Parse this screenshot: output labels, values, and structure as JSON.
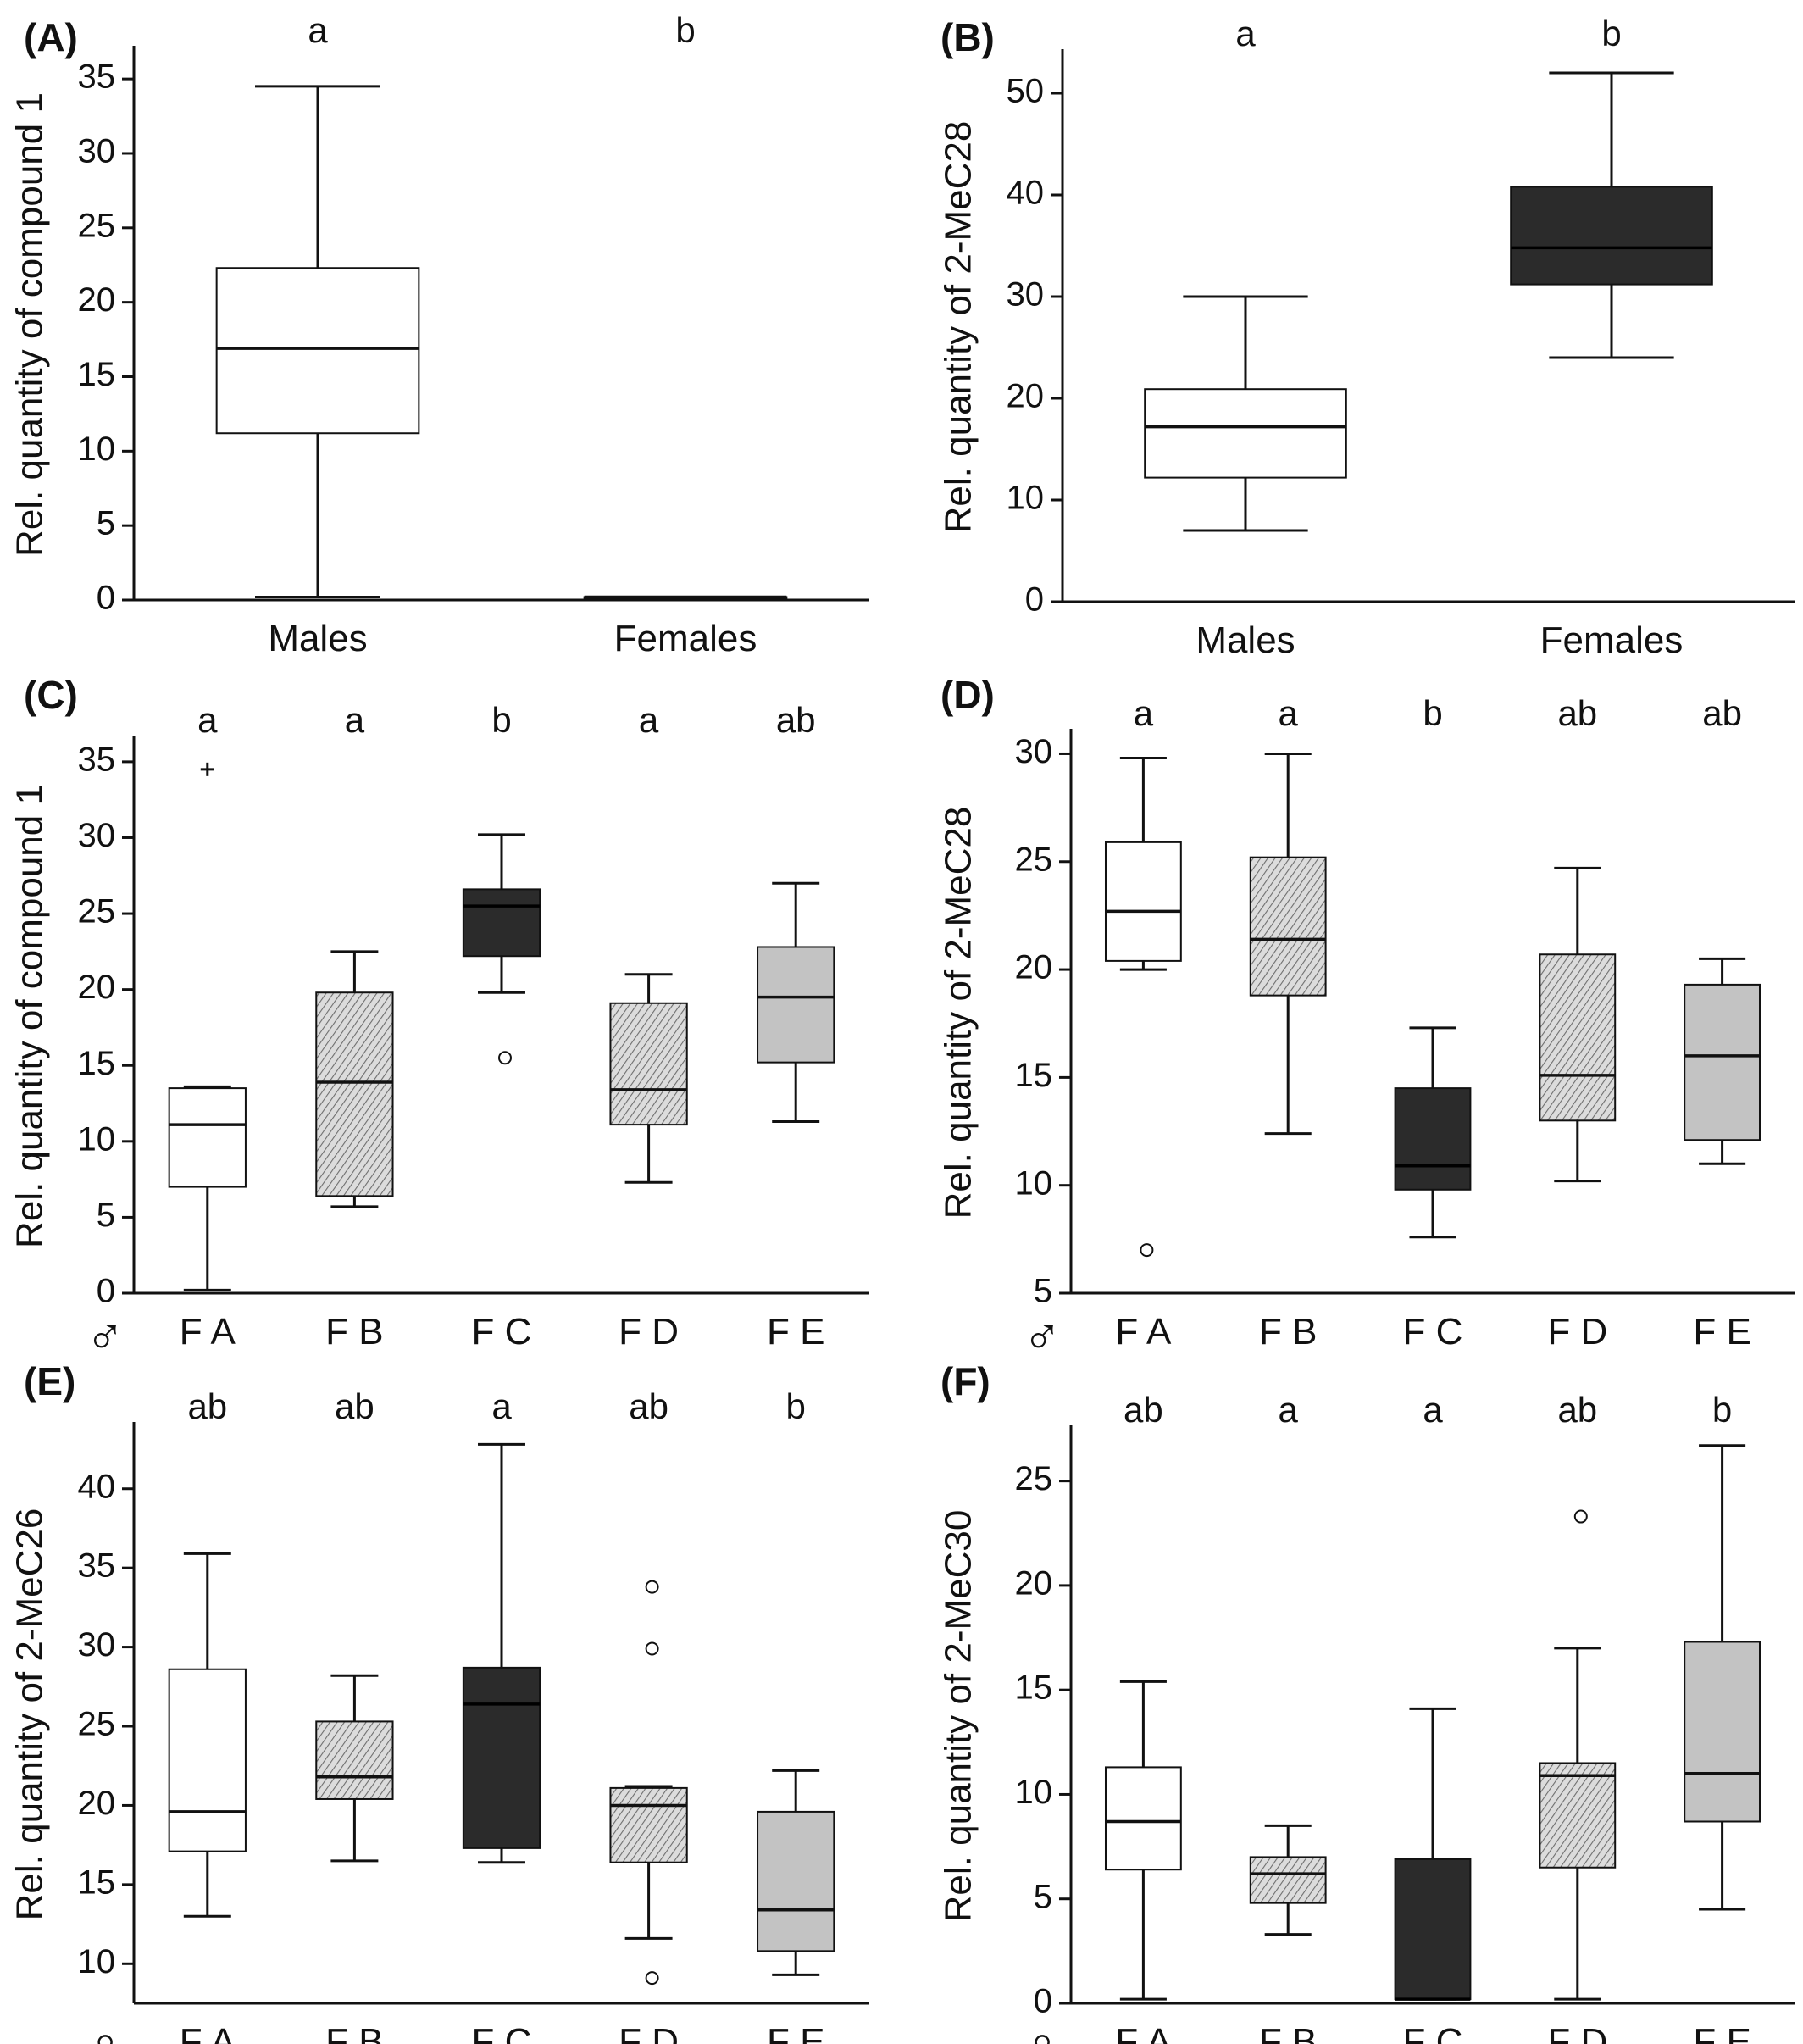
{
  "chart_data": [
    {
      "type": "boxplot",
      "panel": "(A)",
      "ylabel": "Rel. quantity of compound 1",
      "ylim": [
        0,
        37
      ],
      "yticks": [
        0,
        5,
        10,
        15,
        20,
        25,
        30,
        35
      ],
      "sex_symbol": "",
      "categories": [
        {
          "label": "Males",
          "sig": "a",
          "fill": "white",
          "whisker_low": 0.2,
          "q1": 11.2,
          "median": 16.9,
          "q3": 22.3,
          "whisker_high": 34.5,
          "outliers": [],
          "extremes": []
        },
        {
          "label": "Females",
          "sig": "b",
          "fill": "white",
          "whisker_low": 0.2,
          "q1": 0.2,
          "median": 0.2,
          "q3": 0.2,
          "whisker_high": 0.2,
          "outliers": [],
          "extremes": []
        }
      ]
    },
    {
      "type": "boxplot",
      "panel": "(B)",
      "ylabel": "Rel. quantity of 2-MeC28",
      "ylim": [
        0,
        54
      ],
      "yticks": [
        0,
        10,
        20,
        30,
        40,
        50
      ],
      "sex_symbol": "",
      "categories": [
        {
          "label": "Males",
          "sig": "a",
          "fill": "white",
          "whisker_low": 7,
          "q1": 12.2,
          "median": 17.2,
          "q3": 20.9,
          "whisker_high": 30,
          "outliers": [],
          "extremes": []
        },
        {
          "label": "Females",
          "sig": "b",
          "fill": "dark",
          "whisker_low": 24,
          "q1": 31.2,
          "median": 34.8,
          "q3": 40.8,
          "whisker_high": 52,
          "outliers": [],
          "extremes": []
        }
      ]
    },
    {
      "type": "boxplot",
      "panel": "(C)",
      "ylabel": "Rel. quantity of compound 1",
      "ylim": [
        0,
        36.5
      ],
      "yticks": [
        0,
        5,
        10,
        15,
        20,
        25,
        30,
        35
      ],
      "sex_symbol": "♂",
      "categories": [
        {
          "label": "F A",
          "sig": "a",
          "fill": "white",
          "whisker_low": 0.2,
          "q1": 7.0,
          "median": 11.1,
          "q3": 13.5,
          "whisker_high": 13.6,
          "outliers": [],
          "extremes": [
            34.5
          ]
        },
        {
          "label": "F B",
          "sig": "a",
          "fill": "hatch",
          "whisker_low": 5.7,
          "q1": 6.4,
          "median": 13.9,
          "q3": 19.8,
          "whisker_high": 22.5,
          "outliers": [],
          "extremes": []
        },
        {
          "label": "F C",
          "sig": "b",
          "fill": "dark",
          "whisker_low": 19.8,
          "q1": 22.2,
          "median": 25.5,
          "q3": 26.6,
          "whisker_high": 30.2,
          "outliers": [
            15.5
          ],
          "extremes": []
        },
        {
          "label": "F D",
          "sig": "a",
          "fill": "hatch",
          "whisker_low": 7.3,
          "q1": 11.1,
          "median": 13.4,
          "q3": 19.1,
          "whisker_high": 21.0,
          "outliers": [],
          "extremes": []
        },
        {
          "label": "F E",
          "sig": "ab",
          "fill": "gray",
          "whisker_low": 11.3,
          "q1": 15.2,
          "median": 19.5,
          "q3": 22.8,
          "whisker_high": 27.0,
          "outliers": [],
          "extremes": []
        }
      ]
    },
    {
      "type": "boxplot",
      "panel": "(D)",
      "ylabel": "Rel. quantity of 2-MeC28",
      "ylim": [
        5,
        31
      ],
      "yticks": [
        5,
        10,
        15,
        20,
        25,
        30
      ],
      "sex_symbol": "♂",
      "categories": [
        {
          "label": "F A",
          "sig": "a",
          "fill": "white",
          "whisker_low": 20.0,
          "q1": 20.4,
          "median": 22.7,
          "q3": 25.9,
          "whisker_high": 29.8,
          "outliers": [
            7.0
          ],
          "extremes": []
        },
        {
          "label": "F B",
          "sig": "a",
          "fill": "hatch",
          "whisker_low": 12.4,
          "q1": 18.8,
          "median": 21.4,
          "q3": 25.2,
          "whisker_high": 30.0,
          "outliers": [],
          "extremes": []
        },
        {
          "label": "F C",
          "sig": "b",
          "fill": "dark",
          "whisker_low": 7.6,
          "q1": 9.8,
          "median": 10.9,
          "q3": 14.5,
          "whisker_high": 17.3,
          "outliers": [],
          "extremes": []
        },
        {
          "label": "F D",
          "sig": "ab",
          "fill": "hatch",
          "whisker_low": 10.2,
          "q1": 13.0,
          "median": 15.1,
          "q3": 20.7,
          "whisker_high": 24.7,
          "outliers": [],
          "extremes": []
        },
        {
          "label": "F E",
          "sig": "ab",
          "fill": "gray",
          "whisker_low": 11.0,
          "q1": 12.1,
          "median": 16.0,
          "q3": 19.3,
          "whisker_high": 20.5,
          "outliers": [],
          "extremes": []
        }
      ]
    },
    {
      "type": "boxplot",
      "panel": "(E)",
      "ylabel": "Rel. quantity of 2-MeC26",
      "ylim": [
        7.5,
        44
      ],
      "yticks": [
        10,
        15,
        20,
        25,
        30,
        35,
        40
      ],
      "sex_symbol": "♀",
      "categories": [
        {
          "label": "F A",
          "sig": "ab",
          "fill": "white",
          "whisker_low": 13.0,
          "q1": 17.1,
          "median": 19.6,
          "q3": 28.6,
          "whisker_high": 35.9,
          "outliers": [],
          "extremes": []
        },
        {
          "label": "F B",
          "sig": "ab",
          "fill": "hatch",
          "whisker_low": 16.5,
          "q1": 20.4,
          "median": 21.8,
          "q3": 25.3,
          "whisker_high": 28.2,
          "outliers": [],
          "extremes": []
        },
        {
          "label": "F C",
          "sig": "a",
          "fill": "dark",
          "whisker_low": 16.4,
          "q1": 17.3,
          "median": 26.4,
          "q3": 28.7,
          "whisker_high": 42.8,
          "outliers": [],
          "extremes": []
        },
        {
          "label": "F D",
          "sig": "ab",
          "fill": "hatch",
          "whisker_low": 11.6,
          "q1": 16.4,
          "median": 20.0,
          "q3": 21.1,
          "whisker_high": 21.2,
          "outliers": [
            33.8,
            29.9,
            9.1
          ],
          "extremes": []
        },
        {
          "label": "F E",
          "sig": "b",
          "fill": "gray",
          "whisker_low": 9.3,
          "q1": 10.8,
          "median": 13.4,
          "q3": 19.6,
          "whisker_high": 22.2,
          "outliers": [],
          "extremes": []
        }
      ]
    },
    {
      "type": "boxplot",
      "panel": "(F)",
      "ylabel": "Rel. quantity of 2-MeC30",
      "ylim": [
        0,
        27.5
      ],
      "yticks": [
        0,
        5,
        10,
        15,
        20,
        25
      ],
      "sex_symbol": "♀",
      "categories": [
        {
          "label": "F A",
          "sig": "ab",
          "fill": "white",
          "whisker_low": 0.2,
          "q1": 6.4,
          "median": 8.7,
          "q3": 11.3,
          "whisker_high": 15.4,
          "outliers": [],
          "extremes": []
        },
        {
          "label": "F B",
          "sig": "a",
          "fill": "hatch",
          "whisker_low": 3.3,
          "q1": 4.8,
          "median": 6.2,
          "q3": 7.0,
          "whisker_high": 8.5,
          "outliers": [],
          "extremes": []
        },
        {
          "label": "F C",
          "sig": "a",
          "fill": "dark",
          "whisker_low": 0.2,
          "q1": 0.2,
          "median": 0.2,
          "q3": 6.9,
          "whisker_high": 14.1,
          "outliers": [],
          "extremes": []
        },
        {
          "label": "F D",
          "sig": "ab",
          "fill": "hatch",
          "whisker_low": 0.2,
          "q1": 6.5,
          "median": 10.9,
          "q3": 11.5,
          "whisker_high": 17.0,
          "outliers": [
            23.3
          ],
          "extremes": []
        },
        {
          "label": "F E",
          "sig": "b",
          "fill": "gray",
          "whisker_low": 4.5,
          "q1": 8.7,
          "median": 11.0,
          "q3": 17.3,
          "whisker_high": 26.7,
          "outliers": [],
          "extremes": []
        }
      ]
    }
  ],
  "colors": {
    "white": "#ffffff",
    "dark": "#2b2b2b",
    "gray": "#c3c3c3",
    "hatch_bg": "#dcdcdc",
    "hatch_line": "#6e6e6e",
    "ink": "#111111"
  }
}
